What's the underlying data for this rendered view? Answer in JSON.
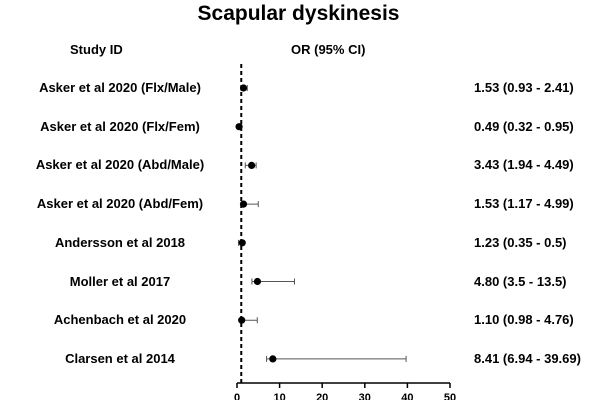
{
  "chart_data": {
    "type": "forest",
    "title": "Scapular dyskinesis",
    "headers": {
      "study": "Study ID",
      "effect": "OR (95% CI)"
    },
    "null_line": 1,
    "xlim": [
      0,
      50
    ],
    "xticks": [
      0,
      10,
      20,
      30,
      40,
      50
    ],
    "studies": [
      {
        "label": "Asker et al 2020 (Flx/Male)",
        "or": 1.53,
        "lower": 0.93,
        "upper": 2.41,
        "text": "1.53 (0.93 - 2.41)"
      },
      {
        "label": "Asker et al 2020 (Flx/Fem)",
        "or": 0.49,
        "lower": 0.32,
        "upper": 0.95,
        "text": "0.49 (0.32 - 0.95)"
      },
      {
        "label": "Asker et al 2020 (Abd/Male)",
        "or": 3.43,
        "lower": 1.94,
        "upper": 4.49,
        "text": "3.43 (1.94 - 4.49)"
      },
      {
        "label": "Asker et al 2020 (Abd/Fem)",
        "or": 1.53,
        "lower": 1.17,
        "upper": 4.99,
        "text": "1.53 (1.17 - 4.99)"
      },
      {
        "label": "Andersson et al 2018",
        "or": 1.23,
        "lower": 0.35,
        "upper": 0.5,
        "text": "1.23 (0.35 - 0.5)"
      },
      {
        "label": "Moller et al 2017",
        "or": 4.8,
        "lower": 3.5,
        "upper": 13.5,
        "text": "4.80 (3.5 - 13.5)"
      },
      {
        "label": "Achenbach et al 2020",
        "or": 1.1,
        "lower": 0.98,
        "upper": 4.76,
        "text": "1.10 (0.98 - 4.76)"
      },
      {
        "label": "Clarsen et al 2014",
        "or": 8.41,
        "lower": 6.94,
        "upper": 39.69,
        "text": "8.41 (6.94 - 39.69)"
      }
    ]
  }
}
